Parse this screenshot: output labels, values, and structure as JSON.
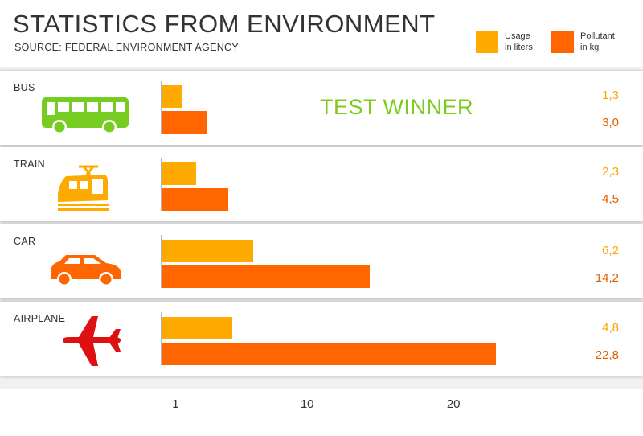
{
  "title": "STATISTICS FROM ENVIRONMENT",
  "subtitle": "SOURCE: FEDERAL ENVIRONMENT AGENCY",
  "legend": {
    "usage": {
      "label_line1": "Usage",
      "label_line2": "in liters",
      "color": "#FFAA00"
    },
    "pollutant": {
      "label_line1": "Pollutant",
      "label_line2": "in kg",
      "color": "#FF6600"
    }
  },
  "annotation": "TEST WINNER",
  "chart_data": {
    "type": "bar",
    "orientation": "horizontal",
    "title": "STATISTICS FROM ENVIRONMENT",
    "subtitle": "SOURCE: FEDERAL ENVIRONMENT AGENCY",
    "categories": [
      "BUS",
      "TRAIN",
      "CAR",
      "AIRPLANE"
    ],
    "series": [
      {
        "name": "Usage in liters",
        "values": [
          1.3,
          2.3,
          6.2,
          4.8
        ],
        "labels": [
          "1,3",
          "2,3",
          "6,2",
          "4,8"
        ],
        "color": "#FFAA00"
      },
      {
        "name": "Pollutant in kg",
        "values": [
          3.0,
          4.5,
          14.2,
          22.8
        ],
        "labels": [
          "3,0",
          "4,5",
          "14,2",
          "22,8"
        ],
        "color": "#FF6600"
      }
    ],
    "xticks": [
      "1",
      "10",
      "20"
    ],
    "xlim": [
      0,
      23
    ],
    "grid": false,
    "legend_position": "top-right",
    "icons": [
      "bus-icon",
      "train-icon",
      "car-icon",
      "airplane-icon"
    ],
    "icon_colors": [
      "#77CC22",
      "#FFAA00",
      "#FF6600",
      "#DD1111"
    ]
  }
}
